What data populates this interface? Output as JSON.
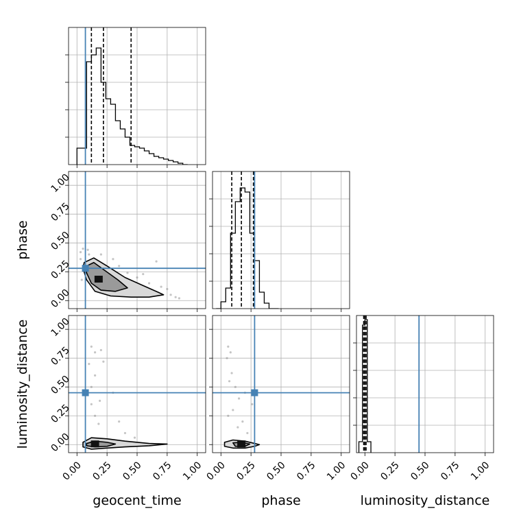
{
  "chart_data": {
    "type": "corner",
    "parameters": [
      "geocent_time",
      "phase",
      "luminosity_distance"
    ],
    "axis_labels": {
      "geocent_time": "geocent_time",
      "phase": "phase",
      "luminosity_distance": "luminosity_distance"
    },
    "xlim": [
      -0.07,
      1.07
    ],
    "ylim": [
      -0.07,
      1.12
    ],
    "ticks": [
      0.0,
      0.25,
      0.5,
      0.75,
      1.0
    ],
    "tick_labels": [
      "0.00",
      "0.25",
      "0.50",
      "0.75",
      "1.00"
    ],
    "grid": true,
    "colors": {
      "truth": "#4682b4",
      "hist": "#000000",
      "grid": "#b0b0b0",
      "samples": "#7f7f7f"
    },
    "truths": {
      "geocent_time": 0.07,
      "phase": 0.28,
      "luminosity_distance": 0.45
    },
    "quantiles": {
      "geocent_time": [
        0.12,
        0.22,
        0.45
      ],
      "phase": [
        0.09,
        0.17,
        0.27
      ],
      "luminosity_distance": [
        -0.01,
        0.0,
        0.01
      ]
    },
    "histograms": {
      "geocent_time": {
        "edges": [
          0.0,
          0.04,
          0.08,
          0.12,
          0.16,
          0.2,
          0.24,
          0.28,
          0.32,
          0.36,
          0.4,
          0.44,
          0.48,
          0.52,
          0.56,
          0.6,
          0.64,
          0.68,
          0.72,
          0.76,
          0.8,
          0.84,
          0.88,
          0.92
        ],
        "counts": [
          0.12,
          0.12,
          0.75,
          0.8,
          0.85,
          0.6,
          0.48,
          0.44,
          0.32,
          0.26,
          0.2,
          0.14,
          0.13,
          0.12,
          0.1,
          0.08,
          0.06,
          0.05,
          0.04,
          0.03,
          0.02,
          0.01,
          0.0
        ]
      },
      "phase": {
        "edges": [
          -0.04,
          0.0,
          0.04,
          0.08,
          0.12,
          0.16,
          0.2,
          0.24,
          0.28,
          0.32,
          0.36,
          0.4,
          0.44,
          0.48
        ],
        "counts": [
          0.0,
          0.05,
          0.15,
          0.55,
          0.78,
          0.88,
          0.85,
          0.55,
          0.35,
          0.12,
          0.04,
          0.0,
          0.0
        ]
      },
      "luminosity_distance": {
        "edges": [
          -0.05,
          -0.02,
          0.0,
          0.02,
          0.05
        ],
        "counts": [
          0.08,
          0.93,
          0.97,
          0.08
        ]
      }
    },
    "pair_panels": [
      {
        "x": "geocent_time",
        "y": "phase",
        "mode": {
          "x": 0.18,
          "y": 0.18
        },
        "contour_outer": [
          [
            0.06,
            0.33
          ],
          [
            0.14,
            0.37
          ],
          [
            0.25,
            0.3
          ],
          [
            0.4,
            0.2
          ],
          [
            0.55,
            0.13
          ],
          [
            0.68,
            0.07
          ],
          [
            0.72,
            0.05
          ],
          [
            0.6,
            0.03
          ],
          [
            0.45,
            0.03
          ],
          [
            0.28,
            0.04
          ],
          [
            0.15,
            0.08
          ],
          [
            0.08,
            0.18
          ],
          [
            0.05,
            0.28
          ]
        ],
        "contour_inner": [
          [
            0.08,
            0.3
          ],
          [
            0.14,
            0.33
          ],
          [
            0.22,
            0.27
          ],
          [
            0.34,
            0.18
          ],
          [
            0.42,
            0.11
          ],
          [
            0.32,
            0.08
          ],
          [
            0.2,
            0.09
          ],
          [
            0.12,
            0.15
          ],
          [
            0.08,
            0.24
          ]
        ],
        "scatter": [
          [
            0.03,
            0.42
          ],
          [
            0.05,
            0.45
          ],
          [
            0.09,
            0.44
          ],
          [
            0.2,
            0.4
          ],
          [
            0.35,
            0.3
          ],
          [
            0.42,
            0.24
          ],
          [
            0.6,
            0.15
          ],
          [
            0.66,
            0.34
          ],
          [
            0.78,
            0.05
          ],
          [
            0.82,
            0.03
          ],
          [
            0.85,
            0.02
          ],
          [
            0.7,
            0.12
          ],
          [
            0.5,
            0.2
          ],
          [
            0.03,
            0.36
          ],
          [
            0.04,
            0.18
          ],
          [
            0.75,
            0.1
          ],
          [
            0.55,
            0.23
          ],
          [
            0.3,
            0.36
          ],
          [
            0.1,
            0.4
          ],
          [
            0.62,
            0.06
          ]
        ]
      },
      {
        "x": "geocent_time",
        "y": "luminosity_distance",
        "mode": {
          "x": 0.15,
          "y": 0.0
        },
        "contour_outer": [
          [
            0.05,
            0.02
          ],
          [
            0.12,
            0.06
          ],
          [
            0.25,
            0.05
          ],
          [
            0.4,
            0.03
          ],
          [
            0.6,
            0.01
          ],
          [
            0.75,
            0.005
          ],
          [
            0.6,
            -0.01
          ],
          [
            0.4,
            -0.02
          ],
          [
            0.25,
            -0.03
          ],
          [
            0.12,
            -0.04
          ],
          [
            0.05,
            -0.02
          ]
        ],
        "contour_inner": [
          [
            0.08,
            0.01
          ],
          [
            0.15,
            0.03
          ],
          [
            0.25,
            0.02
          ],
          [
            0.32,
            0.005
          ],
          [
            0.25,
            -0.015
          ],
          [
            0.15,
            -0.02
          ],
          [
            0.08,
            -0.01
          ]
        ],
        "scatter": [
          [
            0.12,
            0.85
          ],
          [
            0.15,
            0.8
          ],
          [
            0.2,
            0.82
          ],
          [
            0.1,
            0.7
          ],
          [
            0.22,
            0.72
          ],
          [
            0.15,
            0.6
          ],
          [
            0.12,
            0.5
          ],
          [
            0.3,
            0.45
          ],
          [
            0.19,
            0.38
          ],
          [
            0.12,
            0.35
          ],
          [
            0.15,
            0.25
          ],
          [
            0.18,
            0.18
          ],
          [
            0.4,
            0.1
          ],
          [
            0.48,
            0.06
          ],
          [
            0.35,
            0.2
          ]
        ]
      },
      {
        "x": "phase",
        "y": "luminosity_distance",
        "mode": {
          "x": 0.17,
          "y": 0.0
        },
        "contour_outer": [
          [
            0.03,
            0.02
          ],
          [
            0.1,
            0.04
          ],
          [
            0.2,
            0.03
          ],
          [
            0.28,
            0.01
          ],
          [
            0.32,
            0.0
          ],
          [
            0.28,
            -0.015
          ],
          [
            0.2,
            -0.03
          ],
          [
            0.1,
            -0.03
          ],
          [
            0.03,
            -0.015
          ]
        ],
        "contour_inner": [
          [
            0.1,
            0.015
          ],
          [
            0.17,
            0.02
          ],
          [
            0.24,
            0.005
          ],
          [
            0.2,
            -0.015
          ],
          [
            0.12,
            -0.015
          ]
        ],
        "scatter": [
          [
            0.06,
            0.85
          ],
          [
            0.08,
            0.8
          ],
          [
            0.05,
            0.75
          ],
          [
            0.09,
            0.62
          ],
          [
            0.12,
            0.5
          ],
          [
            0.07,
            0.55
          ],
          [
            0.15,
            0.4
          ],
          [
            0.2,
            0.45
          ],
          [
            0.26,
            0.35
          ],
          [
            0.1,
            0.3
          ],
          [
            0.18,
            0.2
          ],
          [
            0.06,
            0.25
          ],
          [
            0.22,
            0.1
          ],
          [
            0.14,
            0.15
          ]
        ]
      }
    ]
  }
}
